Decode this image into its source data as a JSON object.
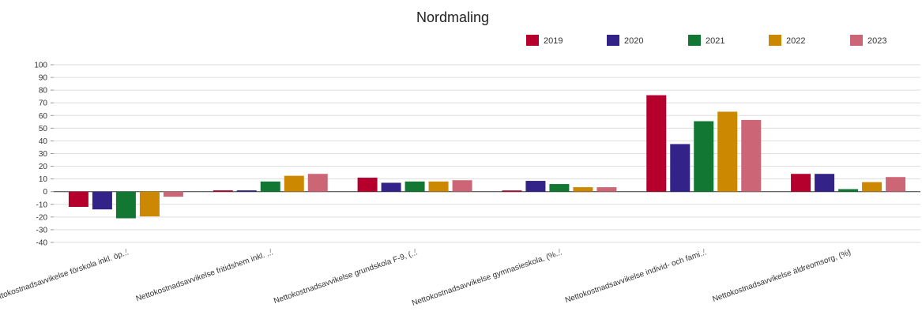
{
  "chart_data": {
    "type": "bar",
    "title": "Nordmaling",
    "categories": [
      "Nettokostnadsavvikelse förskola inkl. öp...",
      "Nettokostnadsavvikelse fritidshem inkl. ...",
      "Nettokostnadsavvikelse grundskola F-9, (...",
      "Nettokostnadsavvikelse gymnasieskola, (%...",
      "Nettokostnadsavvikelse individ- och fami...",
      "Nettokostnadsavvikelse äldreomsorg, (%)"
    ],
    "series": [
      {
        "name": "2019",
        "color": "#b5002d",
        "values": [
          -12,
          1,
          11,
          0.5,
          76,
          14
        ]
      },
      {
        "name": "2020",
        "color": "#332288",
        "values": [
          -14,
          1,
          7,
          8.5,
          37.5,
          14
        ]
      },
      {
        "name": "2021",
        "color": "#117733",
        "values": [
          -21,
          8,
          8,
          6,
          55.5,
          2
        ]
      },
      {
        "name": "2022",
        "color": "#cc8800",
        "values": [
          -19.5,
          12.5,
          8,
          3.5,
          63,
          7.5
        ]
      },
      {
        "name": "2023",
        "color": "#cc6677",
        "values": [
          -4,
          14,
          9,
          3.5,
          56.5,
          11.5
        ]
      }
    ],
    "ylim": [
      -40,
      100
    ],
    "yticks": [
      -40,
      -30,
      -20,
      -10,
      0,
      10,
      20,
      30,
      40,
      50,
      60,
      70,
      80,
      90,
      100
    ],
    "grid": true,
    "legend_position": "top-right"
  }
}
